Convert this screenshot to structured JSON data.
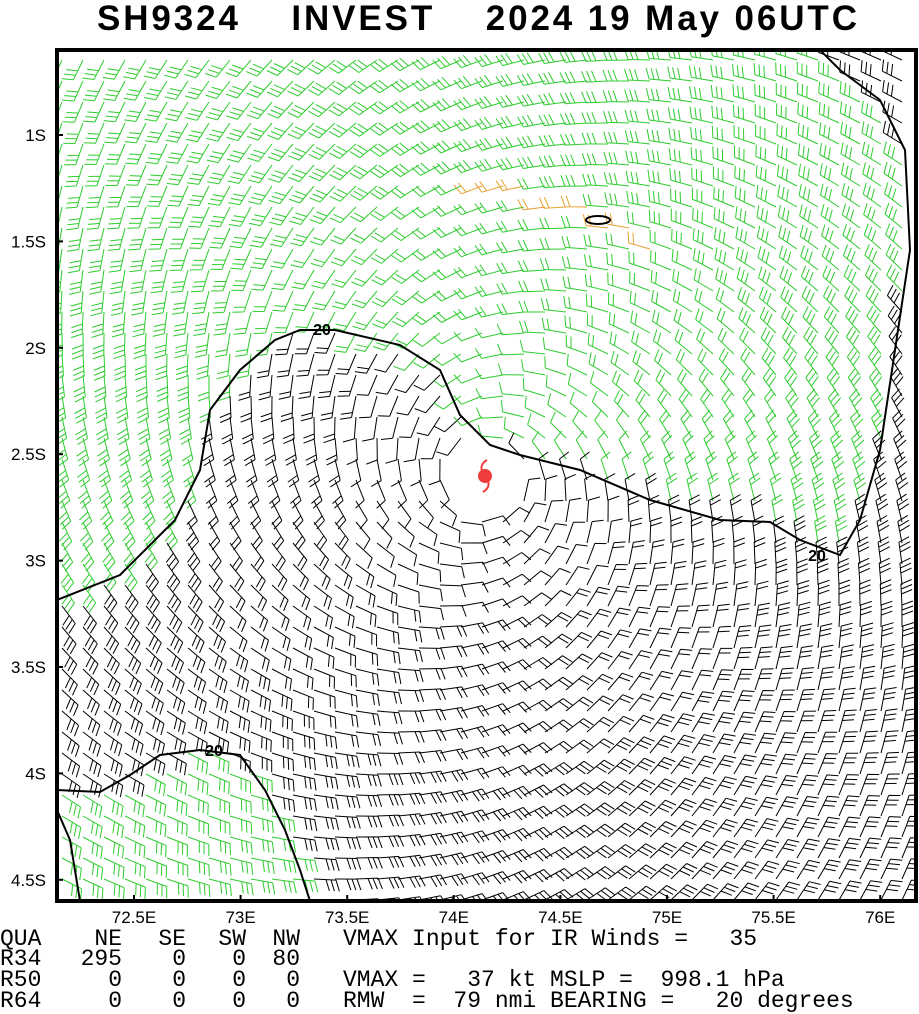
{
  "header": {
    "title": "SH9324    INVEST    2024 19 May 06UTC"
  },
  "axes": {
    "lat_labels": [
      "1S",
      "1.5S",
      "2S",
      "2.5S",
      "3S",
      "3.5S",
      "4S",
      "4.5S"
    ],
    "lon_labels": [
      "72.5E",
      "73E",
      "73.5E",
      "74E",
      "74.5E",
      "75E",
      "75.5E",
      "76E"
    ]
  },
  "contour_labels": [
    "20",
    "20",
    "20"
  ],
  "table": {
    "header": [
      "QUA",
      "NE",
      "SE",
      "SW",
      "NW"
    ],
    "rows": [
      [
        "R34",
        "295",
        "0",
        "0",
        "80"
      ],
      [
        "R50",
        "0",
        "0",
        "0",
        "0"
      ],
      [
        "R64",
        "0",
        "0",
        "0",
        "0"
      ]
    ],
    "notes": [
      "VMAX Input for IR Winds =   35",
      "VMAX =   37 kt MSLP =  998.1 hPa",
      "RMW  =  79 nmi BEARING =   20 degrees"
    ]
  }
}
